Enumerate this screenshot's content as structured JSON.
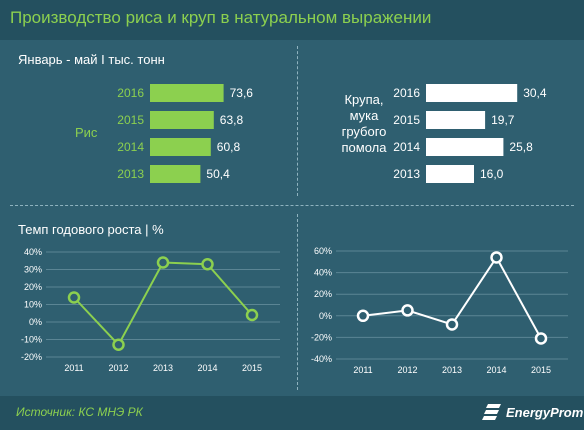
{
  "title": "Производство риса и круп в натуральном выражении",
  "subtitle_top": "Январь - май I тыс. тонн",
  "subtitle_bottom": "Темп годового роста | %",
  "source": "Источник: КС МНЭ РК",
  "brand": "EnergyProm",
  "colors": {
    "rice": "#8cd04f",
    "grain": "#ffffff",
    "title": "#8cd04f"
  },
  "icons": [
    "energyprom-logo-icon"
  ],
  "chart_data": [
    {
      "type": "bar",
      "orientation": "horizontal",
      "series_label": "Рис",
      "categories": [
        "2016",
        "2015",
        "2014",
        "2013"
      ],
      "values": [
        73.6,
        63.8,
        60.8,
        50.4
      ],
      "value_labels": [
        "73,6",
        "63,8",
        "60,8",
        "50,4"
      ],
      "color": "#8cd04f"
    },
    {
      "type": "bar",
      "orientation": "horizontal",
      "series_label": [
        "Крупа,",
        "мука",
        "грубого",
        "помола"
      ],
      "categories": [
        "2016",
        "2015",
        "2014",
        "2013"
      ],
      "values": [
        30.4,
        19.7,
        25.8,
        16.0
      ],
      "value_labels": [
        "30,4",
        "19,7",
        "25,8",
        "16,0"
      ],
      "color": "#ffffff"
    },
    {
      "type": "line",
      "x": [
        "2011",
        "2012",
        "2013",
        "2014",
        "2015"
      ],
      "y": [
        14,
        -13,
        34,
        33,
        4
      ],
      "ylim": [
        -20,
        40
      ],
      "yticks": [
        -20,
        -10,
        0,
        10,
        20,
        30,
        40
      ],
      "ytick_labels": [
        "-20%",
        "-10%",
        "0%",
        "10%",
        "20%",
        "30%",
        "40%"
      ],
      "color": "#8cd04f"
    },
    {
      "type": "line",
      "x": [
        "2011",
        "2012",
        "2013",
        "2014",
        "2015"
      ],
      "y": [
        0,
        5,
        -8,
        54,
        -21
      ],
      "ylim": [
        -40,
        60
      ],
      "yticks": [
        -40,
        -20,
        0,
        20,
        40,
        60
      ],
      "ytick_labels": [
        "-40%",
        "-20%",
        "0%",
        "20%",
        "40%",
        "60%"
      ],
      "color": "#ffffff"
    }
  ]
}
